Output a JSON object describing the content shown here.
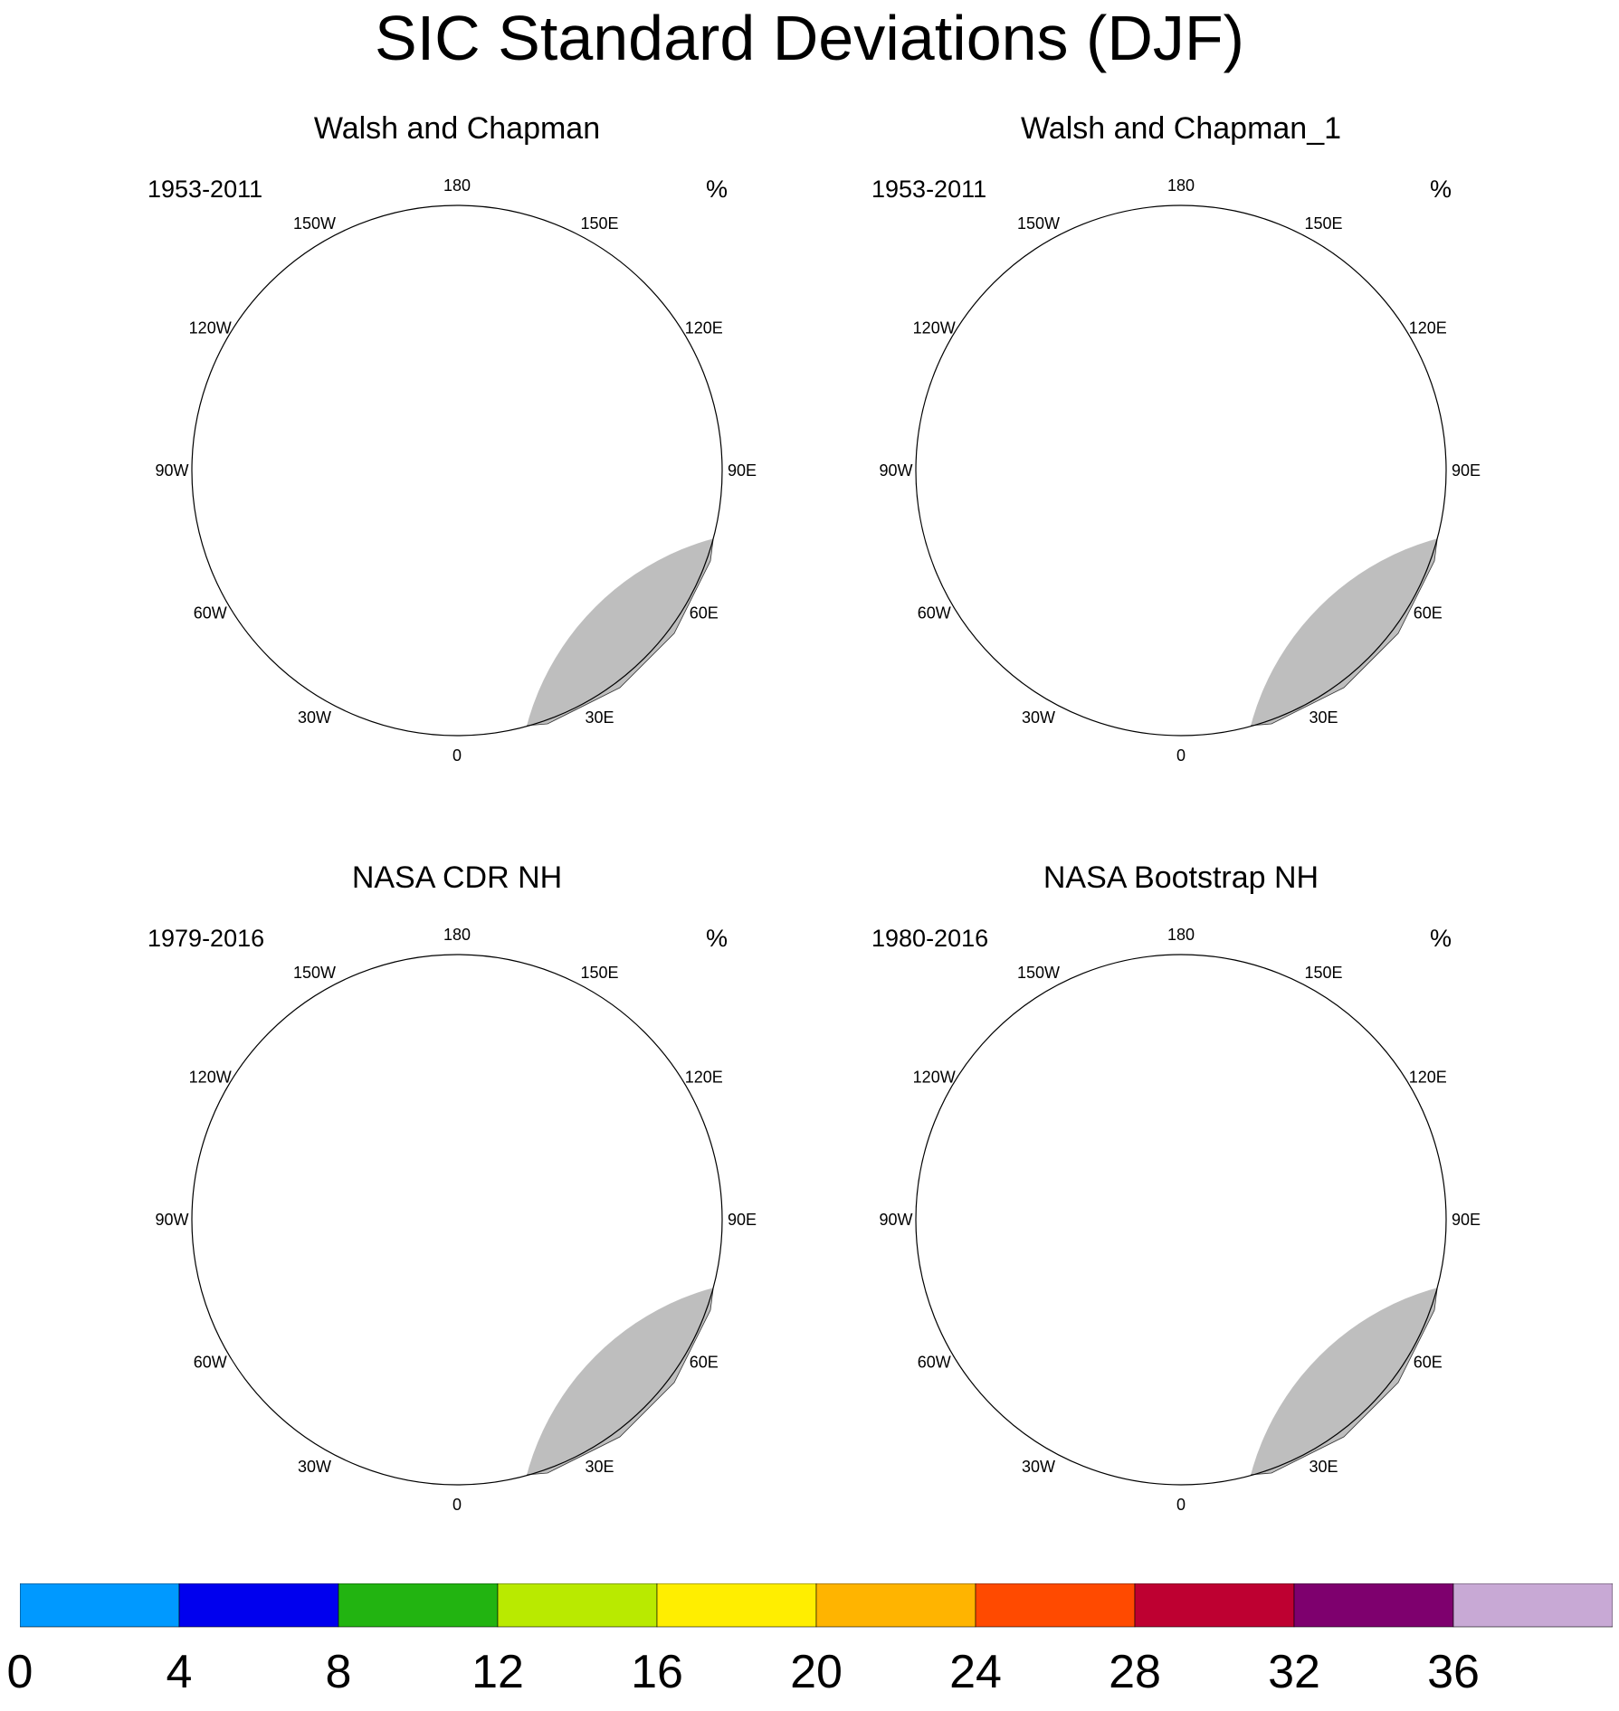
{
  "title": "SIC Standard Deviations (DJF)",
  "units": "%",
  "longitude_labels": [
    "180",
    "150E",
    "120E",
    "90E",
    "60E",
    "30E",
    "0",
    "30W",
    "60W",
    "90W",
    "120W",
    "150W"
  ],
  "panels": [
    {
      "title": "Walsh and Chapman",
      "period": "1953-2011",
      "style": "coarse"
    },
    {
      "title": "Walsh and Chapman_1",
      "period": "1953-2011",
      "style": "coarse"
    },
    {
      "title": "NASA CDR NH",
      "period": "1979-2016",
      "style": "fine"
    },
    {
      "title": "NASA Bootstrap NH",
      "period": "1980-2016",
      "style": "fine"
    }
  ],
  "colorbar": {
    "labels": [
      "0",
      "4",
      "8",
      "12",
      "16",
      "20",
      "24",
      "28",
      "32",
      "36"
    ],
    "colors": [
      "#0099ff",
      "#0000ee",
      "#22b411",
      "#b9ea00",
      "#ffee00",
      "#ffb400",
      "#ff4a00",
      "#be0031",
      "#7e006e",
      "#c8a9d5"
    ]
  },
  "land_color": "#bebebe",
  "ocean_color": "#ffffff"
}
